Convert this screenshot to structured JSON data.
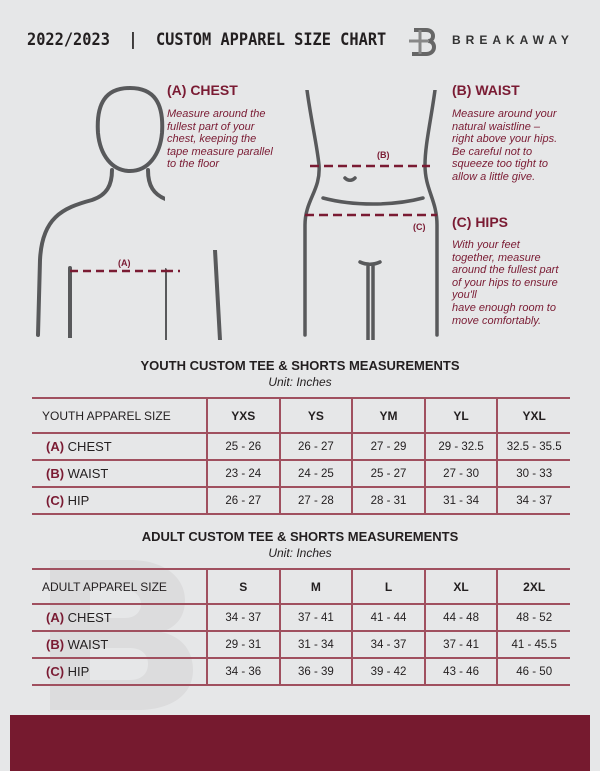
{
  "header": {
    "title": "2022/2023  |  CUSTOM APPAREL SIZE CHART",
    "brand": "BREAKAWAY"
  },
  "colors": {
    "accent": "#7a1b33",
    "background": "#e6e7e8",
    "figure": "#58595b"
  },
  "chest": {
    "heading": "(A) CHEST",
    "marker": "(A)",
    "lines": [
      "Measure around the",
      "fullest part of your",
      "chest, keeping the",
      "tape measure parallel",
      "to the floor"
    ]
  },
  "waist": {
    "heading": "(B) WAIST",
    "marker": "(B)",
    "lines": [
      "Measure around your",
      "natural waistline –",
      "right above your hips.",
      "Be careful not to",
      "squeeze too tight to",
      "allow a little give."
    ]
  },
  "hips": {
    "heading": "(C) HIPS",
    "marker": "(C)",
    "lines": [
      "With your feet",
      "together, measure",
      "around the fullest part",
      "of your hips to ensure",
      "you'll",
      "have enough room to",
      "move comfortably."
    ]
  },
  "youth": {
    "title": "YOUTH CUSTOM TEE & SHORTS MEASUREMENTS",
    "unit": "Unit: Inches",
    "header": "YOUTH APPAREL SIZE",
    "sizes": [
      "YXS",
      "YS",
      "YM",
      "YL",
      "YXL"
    ],
    "rows": [
      {
        "letter": "(A)",
        "name": "CHEST",
        "values": [
          "25 - 26",
          "26 - 27",
          "27 - 29",
          "29 - 32.5",
          "32.5 - 35.5"
        ]
      },
      {
        "letter": "(B)",
        "name": "WAIST",
        "values": [
          "23 - 24",
          "24 - 25",
          "25 - 27",
          "27 - 30",
          "30 - 33"
        ]
      },
      {
        "letter": "(C)",
        "name": "HIP",
        "values": [
          "26 - 27",
          "27 - 28",
          "28 - 31",
          "31 - 34",
          "34 - 37"
        ]
      }
    ]
  },
  "adult": {
    "title": "ADULT CUSTOM TEE & SHORTS MEASUREMENTS",
    "unit": "Unit: Inches",
    "header": "ADULT APPAREL SIZE",
    "sizes": [
      "S",
      "M",
      "L",
      "XL",
      "2XL"
    ],
    "rows": [
      {
        "letter": "(A)",
        "name": "CHEST",
        "values": [
          "34 - 37",
          "37 - 41",
          "41 - 44",
          "44 - 48",
          "48 - 52"
        ]
      },
      {
        "letter": "(B)",
        "name": "WAIST",
        "values": [
          "29 - 31",
          "31 - 34",
          "34 - 37",
          "37 - 41",
          "41 - 45.5"
        ]
      },
      {
        "letter": "(C)",
        "name": "HIP",
        "values": [
          "34 - 36",
          "36 - 39",
          "39 - 42",
          "43 - 46",
          "46 - 50"
        ]
      }
    ]
  }
}
